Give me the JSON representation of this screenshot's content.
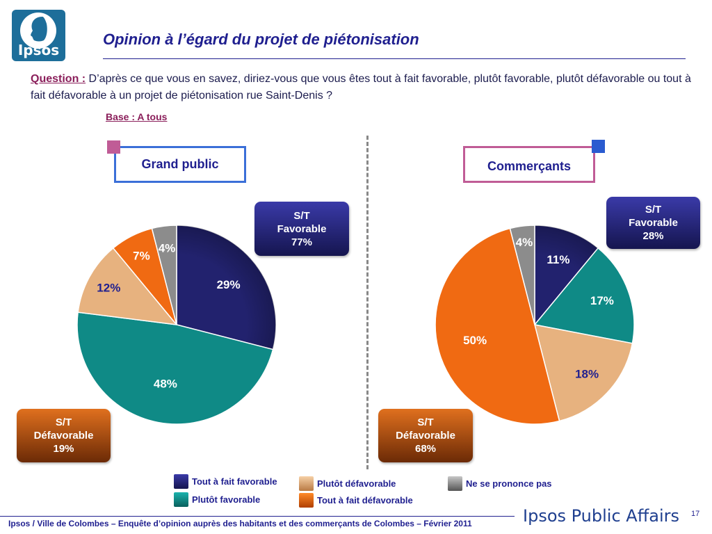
{
  "logo": {
    "text": "Ipsos"
  },
  "title": "Opinion à l’égard du projet de piétonisation",
  "question": {
    "label": "Question :",
    "text": " D’après ce que vous en savez, diriez-vous que vous êtes tout à fait favorable, plutôt favorable, plutôt défavorable ou tout à fait défavorable à un projet de piétonisation rue Saint-Denis ?"
  },
  "base": "Base : A tous",
  "groups": {
    "grand_public": "Grand public",
    "commercants": "Commerçants"
  },
  "badges": {
    "gp_fav": {
      "line1": "S/T",
      "line2": "Favorable",
      "value": "77%"
    },
    "gp_def": {
      "line1": "S/T",
      "line2": "Défavorable",
      "value": "19%"
    },
    "com_fav": {
      "line1": "S/T",
      "line2": "Favorable",
      "value": "28%"
    },
    "com_def": {
      "line1": "S/T",
      "line2": "Défavorable",
      "value": "68%"
    }
  },
  "chart_data": [
    {
      "type": "pie",
      "title": "Grand public",
      "categories": [
        "Tout à fait favorable",
        "Plutôt favorable",
        "Plutôt défavorable",
        "Tout à fait défavorable",
        "Ne se prononce pas"
      ],
      "values": [
        29,
        48,
        12,
        7,
        4
      ],
      "labels": [
        "29%",
        "48%",
        "12%",
        "7%",
        "4%"
      ]
    },
    {
      "type": "pie",
      "title": "Commerçants",
      "categories": [
        "Tout à fait favorable",
        "Plutôt favorable",
        "Plutôt défavorable",
        "Tout à fait défavorable",
        "Ne se prononce pas"
      ],
      "values": [
        11,
        17,
        18,
        50,
        4
      ],
      "labels": [
        "11%",
        "17%",
        "18%",
        "50%",
        "4%"
      ]
    }
  ],
  "legend": [
    {
      "label": "Tout à fait favorable",
      "color": "#22226e"
    },
    {
      "label": "Plutôt favorable",
      "color": "#0f8a86"
    },
    {
      "label": "Plutôt défavorable",
      "color": "#e7b27f"
    },
    {
      "label": "Tout à fait défavorable",
      "color": "#f06a12"
    },
    {
      "label": "Ne se prononce pas",
      "color": "#8c8c8c"
    }
  ],
  "colors": {
    "slices": [
      "#22226e",
      "#0f8a86",
      "#e7b27f",
      "#f06a12",
      "#8c8c8c"
    ],
    "label_colors": [
      "#ffffff",
      "#ffffff",
      "#1f1f8f",
      "#ffffff",
      "#ffffff"
    ]
  },
  "footer": "Ipsos / Ville de Colombes – Enquête d’opinion auprès des habitants et des commerçants de Colombes – Février 2011",
  "brand": "Ipsos Public Affairs",
  "page_number": "17"
}
